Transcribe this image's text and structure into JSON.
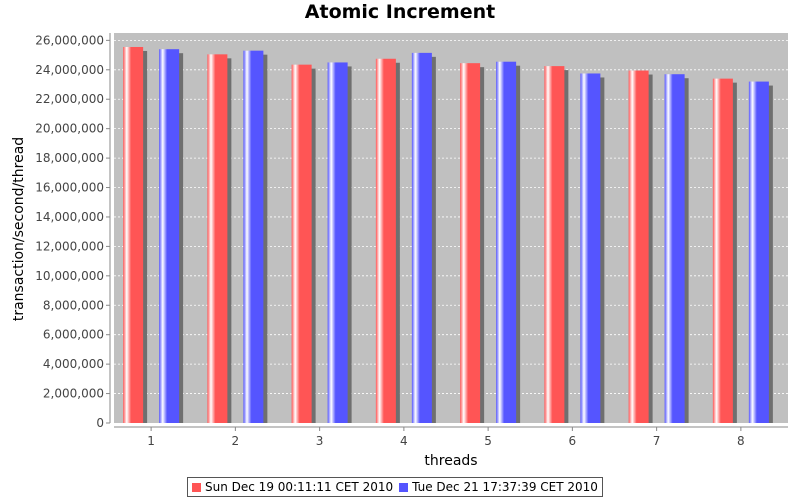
{
  "chart_data": {
    "type": "bar",
    "title": "Atomic Increment",
    "xlabel": "threads",
    "ylabel": "transaction/second/thread",
    "categories": [
      "1",
      "2",
      "3",
      "4",
      "5",
      "6",
      "7",
      "8"
    ],
    "ylim": [
      0,
      26500000
    ],
    "yticks": [
      0,
      2000000,
      4000000,
      6000000,
      8000000,
      10000000,
      12000000,
      14000000,
      16000000,
      18000000,
      20000000,
      22000000,
      24000000,
      26000000
    ],
    "ytick_labels": [
      "0",
      "2,000,000",
      "4,000,000",
      "6,000,000",
      "8,000,000",
      "10,000,000",
      "12,000,000",
      "14,000,000",
      "16,000,000",
      "18,000,000",
      "20,000,000",
      "22,000,000",
      "24,000,000",
      "26,000,000"
    ],
    "grid": true,
    "legend_position": "bottom",
    "series": [
      {
        "name": "Sun Dec 19 00:11:11 CET 2010",
        "color": "#ff5555",
        "values": [
          25550000,
          25050000,
          24350000,
          24750000,
          24450000,
          24250000,
          23950000,
          23400000
        ]
      },
      {
        "name": "Tue Dec 21 17:37:39 CET 2010",
        "color": "#5555ff",
        "values": [
          25400000,
          25300000,
          24500000,
          25150000,
          24550000,
          23750000,
          23700000,
          23200000
        ]
      }
    ]
  }
}
